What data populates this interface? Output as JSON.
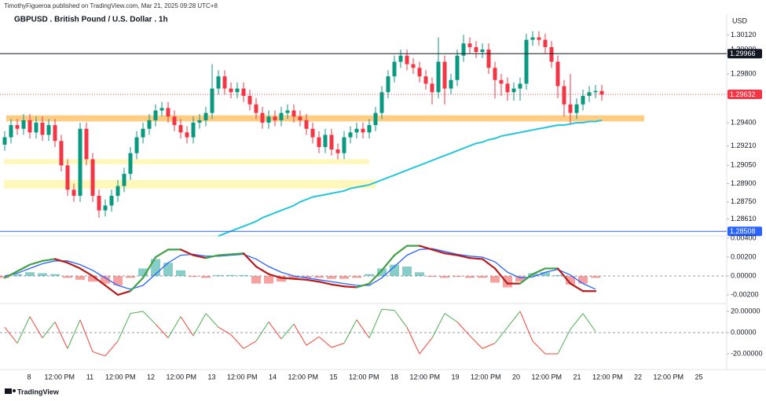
{
  "header": {
    "publisher": "TimothyFigueroa published on TradingView.com, Mar 21, 2025 09:28 UTC+8",
    "title": "GBPUSD . British Pound / U.S. Dollar . 1h",
    "currency": "USD",
    "footer": "TradingView"
  },
  "time_axis": {
    "labels": [
      "8",
      "12:00 PM",
      "11",
      "12:00 PM",
      "12",
      "12:00 PM",
      "13",
      "12:00 PM",
      "14",
      "12:00 PM",
      "15",
      "12:00 PM",
      "18",
      "12:00 PM",
      "19",
      "12:00 PM",
      "20",
      "12:00 PM",
      "21",
      "12:00 PM",
      "22",
      "12:00 PM",
      "25"
    ]
  },
  "chart_data": [
    {
      "type": "candlestick",
      "up_color": "#089981",
      "down_color": "#f23645",
      "ylim": [
        1.28471,
        1.30213
      ],
      "yticks": [
        {
          "value": 1.3012,
          "label": "1.30120"
        },
        {
          "value": 1.3,
          "label": "1.30000"
        },
        {
          "value": 1.298,
          "label": "1.29800"
        },
        {
          "value": 1.294,
          "label": "1.29400"
        },
        {
          "value": 1.2921,
          "label": "1.29210"
        },
        {
          "value": 1.2905,
          "label": "1.29050"
        },
        {
          "value": 1.289,
          "label": "1.28900"
        },
        {
          "value": 1.2875,
          "label": "1.28750"
        },
        {
          "value": 1.2861,
          "label": "1.28610"
        }
      ],
      "price_lines": [
        {
          "value": 1.29966,
          "color": "#131722"
        },
        {
          "value": 1.29632,
          "color": "#f23645"
        },
        {
          "value": 1.28508,
          "color": "#2962ff"
        }
      ],
      "zones": [
        {
          "from": 1.2941,
          "to": 1.2946,
          "color": "#ffb74d"
        },
        {
          "from": 1.2906,
          "to": 1.291,
          "color": "#fff59d"
        },
        {
          "from": 1.2886,
          "to": 1.2893,
          "color": "#fff59d"
        }
      ],
      "candles": [
        [
          1.2922,
          1.2933,
          1.2917,
          1.2928
        ],
        [
          1.2928,
          1.2943,
          1.2923,
          1.2938
        ],
        [
          1.2938,
          1.2943,
          1.293,
          1.2935
        ],
        [
          1.2935,
          1.2947,
          1.293,
          1.2942
        ],
        [
          1.2942,
          1.2947,
          1.2927,
          1.2932
        ],
        [
          1.2932,
          1.2945,
          1.2927,
          1.294
        ],
        [
          1.294,
          1.2945,
          1.2925,
          1.293
        ],
        [
          1.293,
          1.2943,
          1.2925,
          1.2938
        ],
        [
          1.2938,
          1.2943,
          1.292,
          1.2925
        ],
        [
          1.2925,
          1.293,
          1.29,
          1.2905
        ],
        [
          1.2905,
          1.291,
          1.288,
          1.2885
        ],
        [
          1.2885,
          1.289,
          1.2875,
          1.288
        ],
        [
          1.288,
          1.294,
          1.2875,
          1.2935
        ],
        [
          1.2935,
          1.294,
          1.2905,
          1.291
        ],
        [
          1.291,
          1.2915,
          1.2875,
          1.288
        ],
        [
          1.288,
          1.2885,
          1.2862,
          1.2868
        ],
        [
          1.2868,
          1.2877,
          1.2863,
          1.2872
        ],
        [
          1.2872,
          1.2885,
          1.2867,
          1.288
        ],
        [
          1.288,
          1.2893,
          1.2875,
          1.2888
        ],
        [
          1.2888,
          1.2903,
          1.2883,
          1.2898
        ],
        [
          1.2898,
          1.292,
          1.2893,
          1.2915
        ],
        [
          1.2915,
          1.2933,
          1.291,
          1.2928
        ],
        [
          1.2928,
          1.294,
          1.2923,
          1.2935
        ],
        [
          1.2935,
          1.2947,
          1.293,
          1.2942
        ],
        [
          1.2942,
          1.2955,
          1.2937,
          1.295
        ],
        [
          1.295,
          1.2957,
          1.2945,
          1.2952
        ],
        [
          1.2952,
          1.2957,
          1.294,
          1.2945
        ],
        [
          1.2945,
          1.295,
          1.2933,
          1.2938
        ],
        [
          1.2938,
          1.2943,
          1.2927,
          1.2932
        ],
        [
          1.2932,
          1.2937,
          1.2923,
          1.2928
        ],
        [
          1.2928,
          1.2945,
          1.2923,
          1.294
        ],
        [
          1.294,
          1.2947,
          1.2935,
          1.2942
        ],
        [
          1.2942,
          1.2953,
          1.2937,
          1.2948
        ],
        [
          1.2948,
          1.2988,
          1.2943,
          1.2968
        ],
        [
          1.2968,
          1.2983,
          1.2963,
          1.2978
        ],
        [
          1.2978,
          1.2983,
          1.2963,
          1.2968
        ],
        [
          1.2968,
          1.2973,
          1.296,
          1.2965
        ],
        [
          1.2965,
          1.2973,
          1.296,
          1.2968
        ],
        [
          1.2968,
          1.2973,
          1.2957,
          1.2962
        ],
        [
          1.2962,
          1.2967,
          1.295,
          1.2955
        ],
        [
          1.2955,
          1.296,
          1.2943,
          1.2948
        ],
        [
          1.2948,
          1.2953,
          1.2935,
          1.294
        ],
        [
          1.294,
          1.295,
          1.2935,
          1.2945
        ],
        [
          1.2945,
          1.295,
          1.2937,
          1.2942
        ],
        [
          1.2942,
          1.2953,
          1.2937,
          1.2948
        ],
        [
          1.2948,
          1.2955,
          1.2943,
          1.295
        ],
        [
          1.295,
          1.2955,
          1.294,
          1.2945
        ],
        [
          1.2945,
          1.295,
          1.2937,
          1.2942
        ],
        [
          1.2942,
          1.2947,
          1.293,
          1.2935
        ],
        [
          1.2935,
          1.294,
          1.2923,
          1.2928
        ],
        [
          1.2928,
          1.2933,
          1.2915,
          1.292
        ],
        [
          1.292,
          1.2935,
          1.2915,
          1.293
        ],
        [
          1.293,
          1.2935,
          1.2913,
          1.2918
        ],
        [
          1.2918,
          1.2923,
          1.291,
          1.2915
        ],
        [
          1.2915,
          1.2933,
          1.291,
          1.2928
        ],
        [
          1.2928,
          1.2937,
          1.2923,
          1.2932
        ],
        [
          1.2932,
          1.294,
          1.2927,
          1.2935
        ],
        [
          1.2935,
          1.294,
          1.2927,
          1.2932
        ],
        [
          1.2932,
          1.2943,
          1.2927,
          1.2938
        ],
        [
          1.2938,
          1.2953,
          1.2933,
          1.2948
        ],
        [
          1.2948,
          1.297,
          1.2943,
          1.2965
        ],
        [
          1.2965,
          1.2983,
          1.296,
          1.2978
        ],
        [
          1.2978,
          1.2995,
          1.2973,
          1.299
        ],
        [
          1.299,
          1.3,
          1.2985,
          1.2995
        ],
        [
          1.2995,
          1.3,
          1.2983,
          1.2988
        ],
        [
          1.2988,
          1.2993,
          1.298,
          1.2985
        ],
        [
          1.2985,
          1.299,
          1.2973,
          1.2978
        ],
        [
          1.2978,
          1.2983,
          1.2967,
          1.2972
        ],
        [
          1.2972,
          1.2977,
          1.2955,
          1.2965
        ],
        [
          1.2965,
          1.301,
          1.296,
          1.299
        ],
        [
          1.299,
          1.2995,
          1.2955,
          1.2968
        ],
        [
          1.2968,
          1.298,
          1.2963,
          1.2975
        ],
        [
          1.2975,
          1.3,
          1.297,
          1.2995
        ],
        [
          1.2995,
          1.3012,
          1.299,
          1.3005
        ],
        [
          1.3005,
          1.301,
          1.2997,
          1.3002
        ],
        [
          1.3002,
          1.3007,
          1.2993,
          1.2998
        ],
        [
          1.2998,
          1.3005,
          1.2993,
          1.3
        ],
        [
          1.3,
          1.3005,
          1.298,
          1.2985
        ],
        [
          1.2985,
          1.299,
          1.296,
          1.2975
        ],
        [
          1.2975,
          1.298,
          1.2962,
          1.2972
        ],
        [
          1.2972,
          1.2977,
          1.2958,
          1.2965
        ],
        [
          1.2965,
          1.2973,
          1.2958,
          1.2968
        ],
        [
          1.2968,
          1.2977,
          1.2958,
          1.2972
        ],
        [
          1.2972,
          1.3013,
          1.2967,
          1.3008
        ],
        [
          1.3008,
          1.3015,
          1.3003,
          1.301
        ],
        [
          1.301,
          1.3015,
          1.3003,
          1.3008
        ],
        [
          1.3008,
          1.3013,
          1.2997,
          1.3002
        ],
        [
          1.3002,
          1.3007,
          1.2985,
          1.299
        ],
        [
          1.299,
          1.2995,
          1.296,
          1.297
        ],
        [
          1.297,
          1.2975,
          1.2945,
          1.2955
        ],
        [
          1.2955,
          1.298,
          1.2938,
          1.2948
        ],
        [
          1.2948,
          1.296,
          1.2943,
          1.2955
        ],
        [
          1.2955,
          1.2967,
          1.295,
          1.2962
        ],
        [
          1.2962,
          1.297,
          1.2957,
          1.2965
        ],
        [
          1.2965,
          1.2971,
          1.296,
          1.2966
        ],
        [
          1.2966,
          1.2971,
          1.2958,
          1.2963
        ]
      ],
      "ma": {
        "color": "#26c6da",
        "values": [
          null,
          null,
          null,
          null,
          null,
          null,
          null,
          null,
          null,
          null,
          null,
          null,
          null,
          null,
          null,
          null,
          null,
          null,
          null,
          null,
          null,
          null,
          null,
          null,
          null,
          null,
          null,
          null,
          null,
          null,
          null,
          null,
          null,
          null,
          1.2847,
          1.2849,
          1.2851,
          1.2853,
          1.2855,
          1.2857,
          1.2859,
          1.2862,
          1.2864,
          1.2866,
          1.2868,
          1.287,
          1.2872,
          1.2875,
          1.2877,
          1.2879,
          1.288,
          1.2881,
          1.2882,
          1.2883,
          1.2884,
          1.2886,
          1.2887,
          1.2888,
          1.2889,
          1.2891,
          1.2893,
          1.2895,
          1.2897,
          1.2899,
          1.2901,
          1.2903,
          1.2905,
          1.2907,
          1.2909,
          1.2911,
          1.2913,
          1.2915,
          1.2917,
          1.2919,
          1.2921,
          1.2923,
          1.2924,
          1.2926,
          1.2927,
          1.2929,
          1.293,
          1.2931,
          1.2932,
          1.2933,
          1.2934,
          1.2935,
          1.2936,
          1.2937,
          1.2938,
          1.2938,
          1.2939,
          1.294,
          1.294,
          1.2941,
          1.2941,
          1.2942
        ]
      }
    },
    {
      "type": "macd",
      "ylim": [
        -0.00283,
        0.00425
      ],
      "yticks": [
        {
          "value": 0.004,
          "label": "0.00400"
        },
        {
          "value": 0.002,
          "label": "0.00200"
        },
        {
          "value": 0,
          "label": "0.00000"
        },
        {
          "value": -0.002,
          "label": "-0.00200"
        }
      ],
      "fast": {
        "up_color": "#43a047",
        "down_color": "#b71c1c",
        "values": [
          -0.0002,
          0.0005,
          0.0012,
          0.0016,
          0.0018,
          0.0014,
          0.0008,
          0,
          -0.001,
          -0.002,
          -0.0016,
          -0.0002,
          0.002,
          0.0028,
          0.0028,
          0.0022,
          0.0019,
          0.0022,
          0.0023,
          0.0024,
          0.001,
          0.0002,
          -0.0002,
          -0.0003,
          -0.0004,
          -0.0006,
          -0.0009,
          -0.0011,
          -0.0012,
          -0.0008,
          0.0006,
          0.0022,
          0.0032,
          0.0032,
          0.0028,
          0.0024,
          0.0022,
          0.0019,
          0.0018,
          0.0008,
          -0.0008,
          -0.0008,
          0.0002,
          0.0008,
          0.0008,
          -0.0008,
          -0.0016,
          -0.0016
        ]
      },
      "slow": {
        "color": "#2962ff",
        "values": [
          0,
          0.0003,
          0.0008,
          0.0013,
          0.0016,
          0.0016,
          0.0012,
          0.0006,
          -0.0002,
          -0.001,
          -0.0014,
          -0.001,
          0.0002,
          0.0014,
          0.0022,
          0.0023,
          0.0021,
          0.0021,
          0.0022,
          0.0023,
          0.0018,
          0.001,
          0.0004,
          0,
          -0.0002,
          -0.0004,
          -0.0006,
          -0.0008,
          -0.001,
          -0.001,
          -0.0002,
          0.001,
          0.0022,
          0.0028,
          0.0029,
          0.0026,
          0.0023,
          0.0021,
          0.002,
          0.0015,
          0.0004,
          -0.0002,
          -0.0001,
          0.0004,
          0.0007,
          0.0001,
          -0.0008,
          -0.0014
        ]
      },
      "histogram": {
        "up_color": "#26a69a",
        "down_color": "#ef5350",
        "values": [
          -0.0002,
          0.0002,
          0.0004,
          0.0003,
          0.0002,
          -0.0002,
          -0.0004,
          -0.0006,
          -0.0008,
          -0.001,
          -0.0002,
          0.0008,
          0.0018,
          0.0014,
          0.0006,
          -0.0001,
          -0.0002,
          0.0001,
          0.0001,
          0.0001,
          -0.0008,
          -0.0008,
          -0.0006,
          -0.0003,
          -0.0002,
          -0.0002,
          -0.0003,
          -0.0003,
          -0.0002,
          0.0002,
          0.0008,
          0.0012,
          0.001,
          0.0004,
          -0.0001,
          -0.0002,
          -0.0001,
          -0.0002,
          -0.0002,
          -0.0007,
          -0.0012,
          -0.0006,
          0.0003,
          0.0004,
          0.0001,
          -0.0009,
          -0.0008,
          -0.0002
        ]
      }
    },
    {
      "type": "oscillator",
      "up_color": "#4caf50",
      "down_color": "#f44336",
      "ylim": [
        -34.8,
        25.9
      ],
      "yticks": [
        {
          "value": 20,
          "label": "20.00000"
        },
        {
          "value": 0,
          "label": "0.00000"
        },
        {
          "value": -20,
          "label": "-20.00000"
        }
      ],
      "values": [
        5,
        -10,
        15,
        -5,
        10,
        -15,
        12,
        -18,
        -22,
        -8,
        18,
        20,
        8,
        -5,
        15,
        -3,
        18,
        5,
        -2,
        -15,
        -8,
        10,
        -6,
        8,
        -12,
        -4,
        -14,
        -10,
        12,
        -5,
        22,
        21,
        5,
        -20,
        -5,
        18,
        10,
        -3,
        -15,
        -10,
        5,
        20,
        -8,
        -20,
        -20,
        3,
        18,
        1
      ]
    }
  ]
}
